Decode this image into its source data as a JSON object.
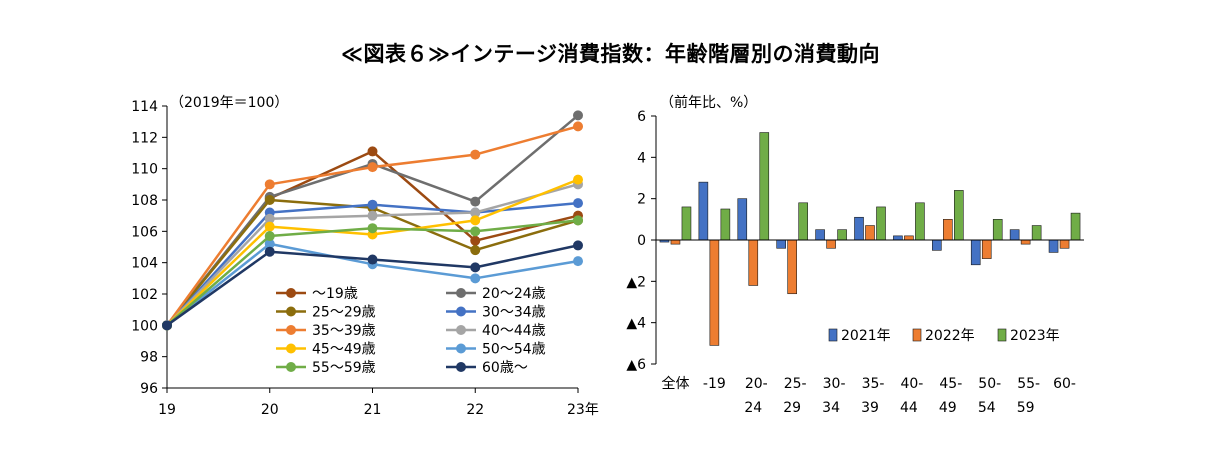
{
  "page": {
    "title": "≪図表６≫インテージ消費指数：年齢階層別の消費動向"
  },
  "chart_data": [
    {
      "type": "line",
      "unit_label": "（2019年＝100）",
      "x": [
        "19",
        "20",
        "21",
        "22",
        "23年"
      ],
      "ylim": [
        96,
        114
      ],
      "yticks": [
        96,
        98,
        100,
        102,
        104,
        106,
        108,
        110,
        112,
        114
      ],
      "grid": false,
      "legend_position": "bottom-center",
      "series": [
        {
          "name": "～19歳",
          "color": "#9C4A12",
          "values": [
            100,
            108.1,
            111.1,
            105.4,
            107.0
          ]
        },
        {
          "name": "20～24歳",
          "color": "#6E6E6E",
          "values": [
            100,
            108.2,
            110.3,
            107.9,
            113.4
          ]
        },
        {
          "name": "25～29歳",
          "color": "#8B6D0D",
          "values": [
            100,
            108.0,
            107.5,
            104.8,
            106.7
          ]
        },
        {
          "name": "30～34歳",
          "color": "#4472C4",
          "values": [
            100,
            107.2,
            107.7,
            107.2,
            107.8
          ]
        },
        {
          "name": "35～39歳",
          "color": "#ED7D31",
          "values": [
            100,
            109.0,
            110.1,
            110.9,
            112.7
          ]
        },
        {
          "name": "40～44歳",
          "color": "#A5A5A5",
          "values": [
            100,
            106.8,
            107.0,
            107.2,
            109.0
          ]
        },
        {
          "name": "45～49歳",
          "color": "#FFC000",
          "values": [
            100,
            106.3,
            105.8,
            106.7,
            109.3
          ]
        },
        {
          "name": "50～54歳",
          "color": "#5B9BD5",
          "values": [
            100,
            105.2,
            103.9,
            103.0,
            104.1
          ]
        },
        {
          "name": "55～59歳",
          "color": "#70AD47",
          "values": [
            100,
            105.7,
            106.2,
            106.0,
            106.7
          ]
        },
        {
          "name": "60歳～",
          "color": "#203864",
          "values": [
            100,
            104.7,
            104.2,
            103.7,
            105.1
          ]
        }
      ]
    },
    {
      "type": "bar",
      "unit_label": "（前年比、%）",
      "categories": [
        "全体",
        "-19",
        "20-24",
        "25-29",
        "30-34",
        "35-39",
        "40-44",
        "45-49",
        "50-54",
        "55-59",
        "60-"
      ],
      "category_lines": [
        [
          "全体"
        ],
        [
          "-19"
        ],
        [
          "20-",
          "24"
        ],
        [
          "25-",
          "29"
        ],
        [
          "30-",
          "34"
        ],
        [
          "35-",
          "39"
        ],
        [
          "40-",
          "44"
        ],
        [
          "45-",
          "49"
        ],
        [
          "50-",
          "54"
        ],
        [
          "55-",
          "59"
        ],
        [
          "60-"
        ]
      ],
      "ylim": [
        -6,
        6
      ],
      "yticks": [
        6,
        4,
        2,
        0,
        -2,
        -4,
        -6
      ],
      "ytick_labels": [
        "6",
        "4",
        "2",
        "0",
        "▲2",
        "▲4",
        "▲6"
      ],
      "grid": false,
      "legend_position": "bottom-right",
      "series": [
        {
          "name": "2021年",
          "color": "#4472C4",
          "values": [
            -0.1,
            2.8,
            2.0,
            -0.4,
            0.5,
            1.1,
            0.2,
            -0.5,
            -1.2,
            0.5,
            -0.6
          ]
        },
        {
          "name": "2022年",
          "color": "#ED7D31",
          "values": [
            -0.2,
            -5.1,
            -2.2,
            -2.6,
            -0.4,
            0.7,
            0.2,
            1.0,
            -0.9,
            -0.2,
            -0.4
          ]
        },
        {
          "name": "2023年",
          "color": "#70AD47",
          "values": [
            1.6,
            1.5,
            5.2,
            1.8,
            0.5,
            1.6,
            1.8,
            2.4,
            1.0,
            0.7,
            1.3
          ]
        }
      ]
    }
  ]
}
